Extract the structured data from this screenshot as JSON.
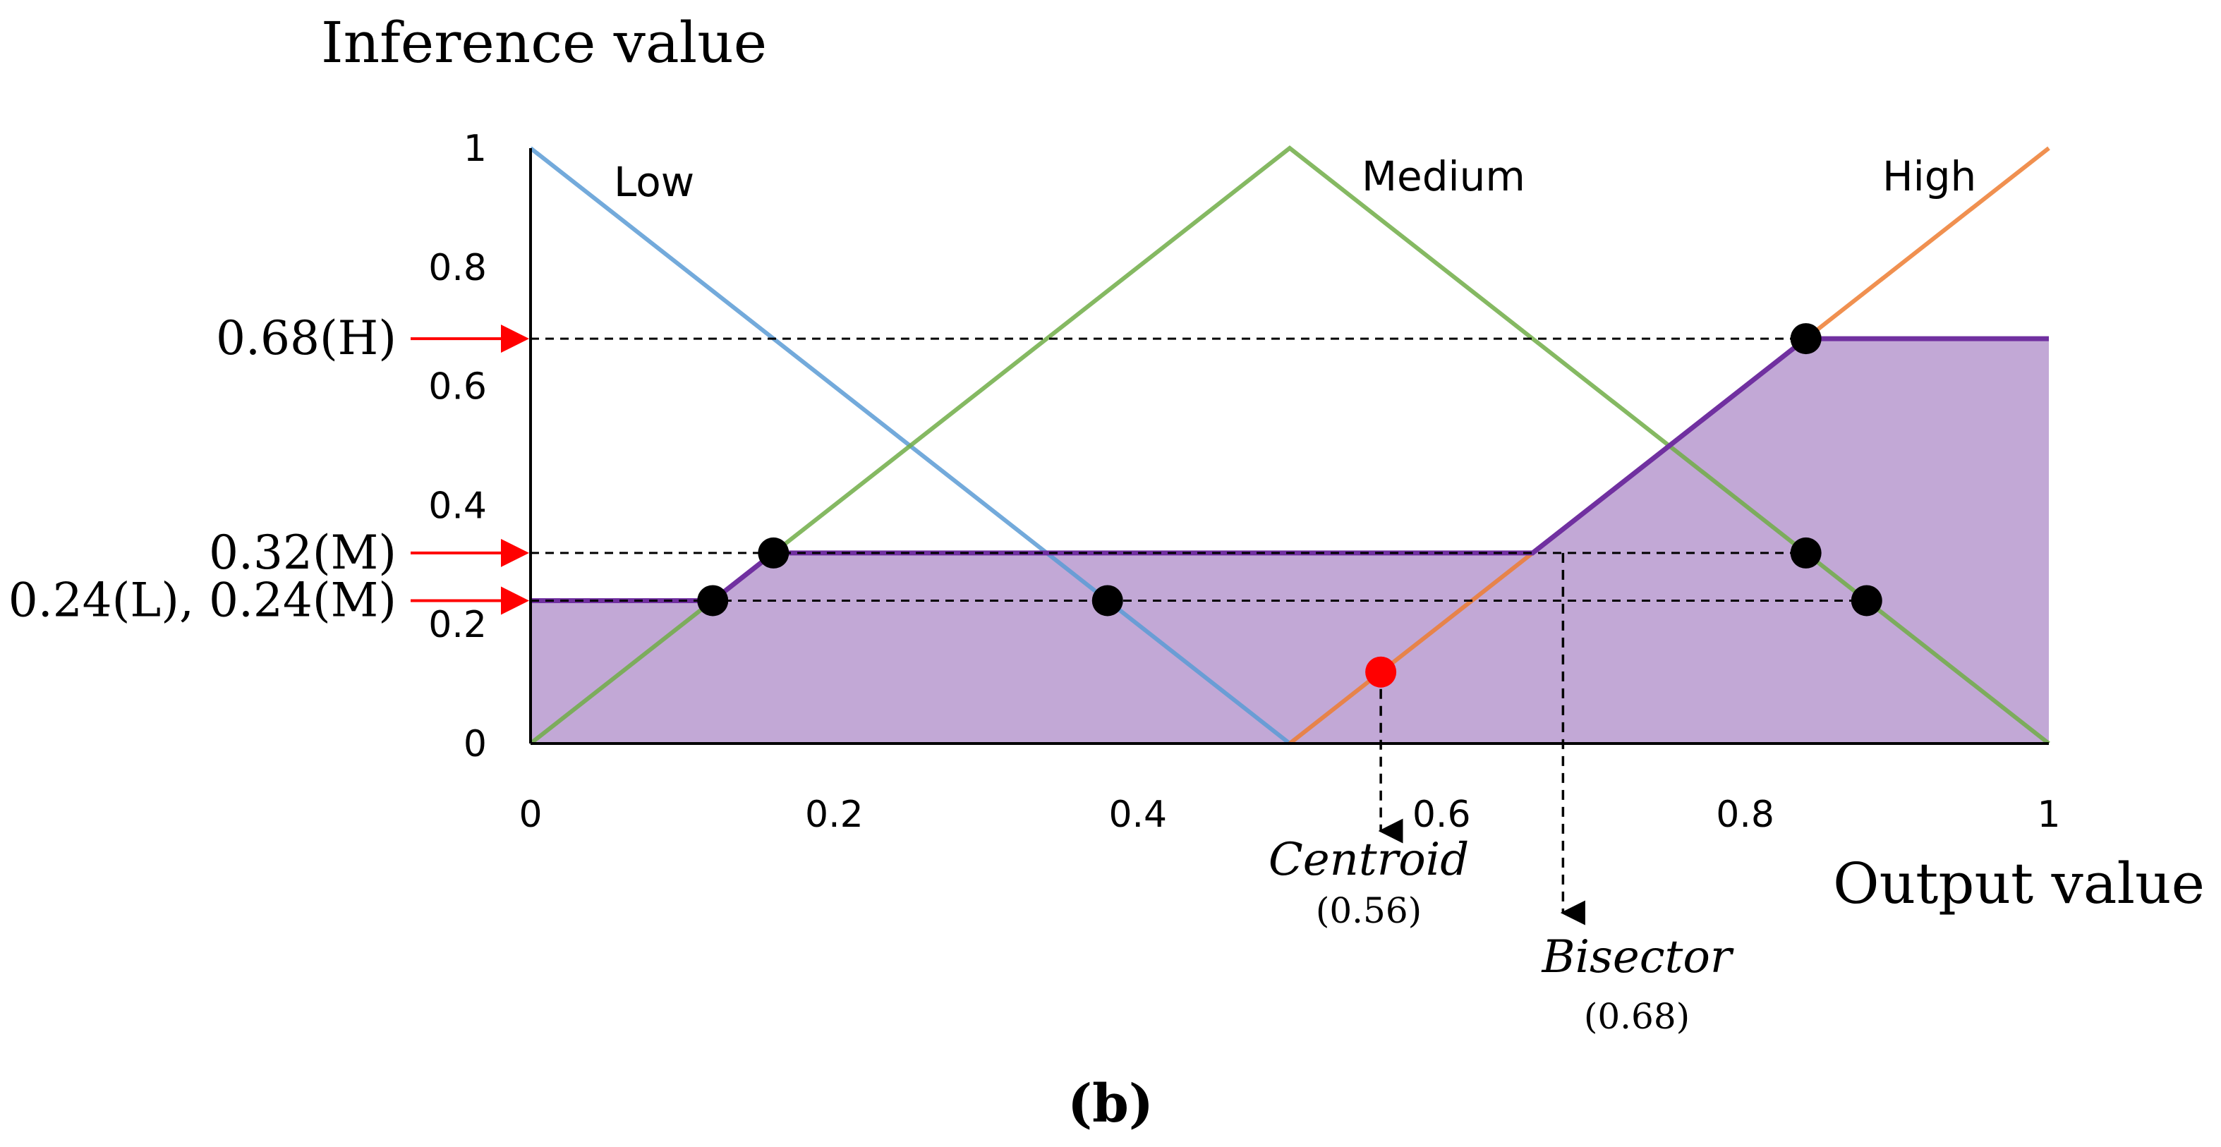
{
  "chart_data": {
    "type": "line",
    "title": "",
    "ylabel": "Inference value",
    "xlabel": "Output value",
    "xlim": [
      0,
      1
    ],
    "ylim": [
      0,
      1
    ],
    "x_ticks": [
      "0",
      "0.2",
      "0.4",
      "0.6",
      "0.8",
      "1"
    ],
    "y_ticks": [
      "0",
      "0.2",
      "0.4",
      "0.6",
      "0.8",
      "1"
    ],
    "series": [
      {
        "name": "Low",
        "color": "#5b9bd5",
        "points": [
          [
            0,
            1
          ],
          [
            0.5,
            0
          ]
        ]
      },
      {
        "name": "Medium",
        "color": "#70ad47",
        "points": [
          [
            0,
            0
          ],
          [
            0.5,
            1
          ],
          [
            1,
            0
          ]
        ]
      },
      {
        "name": "High",
        "color": "#ed7d31",
        "points": [
          [
            0.5,
            0
          ],
          [
            1,
            1
          ]
        ]
      }
    ],
    "aggregated_output": {
      "color": "#7030a0",
      "fill": "#c2a8d6",
      "points": [
        [
          0,
          0.24
        ],
        [
          0.12,
          0.24
        ],
        [
          0.16,
          0.32
        ],
        [
          0.66,
          0.32
        ],
        [
          0.84,
          0.68
        ],
        [
          1,
          0.68
        ],
        [
          1,
          0
        ],
        [
          0,
          0
        ]
      ]
    },
    "inference_levels": [
      {
        "label": "0.68(H)",
        "value": 0.68
      },
      {
        "label": "0.32(M)",
        "value": 0.32
      },
      {
        "label": "0.24(L), 0.24(M)",
        "value": 0.24
      }
    ],
    "intersection_points": [
      [
        0.12,
        0.24
      ],
      [
        0.16,
        0.32
      ],
      [
        0.38,
        0.24
      ],
      [
        0.84,
        0.68
      ],
      [
        0.84,
        0.32
      ],
      [
        0.88,
        0.24
      ]
    ],
    "centroid": {
      "label": "Centroid",
      "value_label": "(0.56)",
      "x": 0.56,
      "y": 0.12,
      "color": "#ff0000"
    },
    "bisector": {
      "label": "Bisector",
      "value_label": "(0.68)",
      "x": 0.68
    },
    "panel_label": "(b)"
  }
}
